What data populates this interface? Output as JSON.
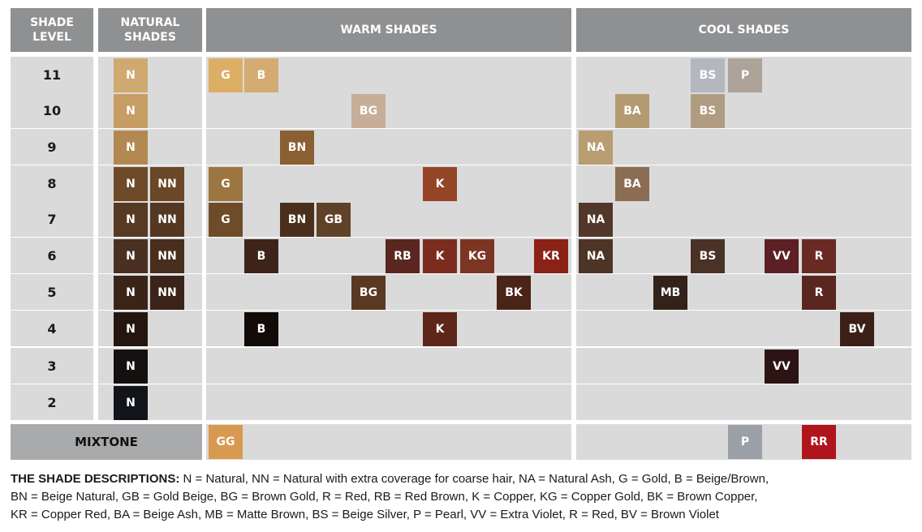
{
  "headers": {
    "shade_level": "SHADE\nLEVEL",
    "natural": "NATURAL\nSHADES",
    "warm": "WARM SHADES",
    "cool": "COOL SHADES"
  },
  "mixtone_label": "MIXTONE",
  "rows": [
    {
      "level": "11",
      "natural": [
        {
          "code": "N",
          "color": "#cfa970"
        }
      ],
      "warm": [
        {
          "code": "G",
          "color": "#dcae66"
        },
        {
          "code": "B",
          "color": "#d4ab72"
        }
      ],
      "cool": [
        {
          "code": "BS",
          "color": "#b4b8be"
        },
        {
          "code": "P",
          "color": "#aea399"
        }
      ]
    },
    {
      "level": "10",
      "natural": [
        {
          "code": "N",
          "color": "#c69d62"
        }
      ],
      "warm": [
        {
          "code": "BG",
          "color": "#c6ae98"
        }
      ],
      "cool": [
        {
          "code": "BA",
          "color": "#b49a72"
        },
        {
          "code": "BS",
          "color": "#b09c80"
        }
      ]
    },
    {
      "level": "9",
      "natural": [
        {
          "code": "N",
          "color": "#b38850"
        }
      ],
      "warm": [
        {
          "code": "BN",
          "color": "#8a5f32"
        }
      ],
      "cool": [
        {
          "code": "NA",
          "color": "#b89d70"
        }
      ]
    },
    {
      "level": "8",
      "natural": [
        {
          "code": "N",
          "color": "#6e4a29"
        },
        {
          "code": "NN",
          "color": "#6a4727"
        }
      ],
      "warm": [
        {
          "code": "G",
          "color": "#9c7540"
        },
        {
          "code": "K",
          "color": "#944526"
        }
      ],
      "cool": [
        {
          "code": "BA",
          "color": "#8a6d52"
        }
      ]
    },
    {
      "level": "7",
      "natural": [
        {
          "code": "N",
          "color": "#563a22"
        },
        {
          "code": "NN",
          "color": "#553822"
        }
      ],
      "warm": [
        {
          "code": "G",
          "color": "#6e4c2a"
        },
        {
          "code": "BN",
          "color": "#4a301c"
        },
        {
          "code": "GB",
          "color": "#604228"
        }
      ],
      "cool": [
        {
          "code": "NA",
          "color": "#52372a"
        }
      ]
    },
    {
      "level": "6",
      "natural": [
        {
          "code": "N",
          "color": "#4a3020"
        },
        {
          "code": "NN",
          "color": "#472e1e"
        }
      ],
      "warm": [
        {
          "code": "B",
          "color": "#3e2418"
        },
        {
          "code": "RB",
          "color": "#5a2620"
        },
        {
          "code": "K",
          "color": "#7c2c1e"
        },
        {
          "code": "KG",
          "color": "#7c3522"
        },
        {
          "code": "KR",
          "color": "#8a2218"
        }
      ],
      "cool": [
        {
          "code": "NA",
          "color": "#4c3426"
        },
        {
          "code": "BS",
          "color": "#4a3226"
        },
        {
          "code": "VV",
          "color": "#5c2024"
        },
        {
          "code": "R",
          "color": "#6a2a24"
        }
      ]
    },
    {
      "level": "5",
      "natural": [
        {
          "code": "N",
          "color": "#3a2418"
        },
        {
          "code": "NN",
          "color": "#3a2318"
        }
      ],
      "warm": [
        {
          "code": "BG",
          "color": "#5a3822"
        },
        {
          "code": "BK",
          "color": "#4a2418"
        }
      ],
      "cool": [
        {
          "code": "MB",
          "color": "#332219"
        },
        {
          "code": "R",
          "color": "#5a2620"
        }
      ]
    },
    {
      "level": "4",
      "natural": [
        {
          "code": "N",
          "color": "#24160f"
        }
      ],
      "warm": [
        {
          "code": "B",
          "color": "#120a07"
        },
        {
          "code": "K",
          "color": "#5e2618"
        }
      ],
      "cool": [
        {
          "code": "BV",
          "color": "#3c2018"
        }
      ]
    },
    {
      "level": "3",
      "natural": [
        {
          "code": "N",
          "color": "#141010"
        }
      ],
      "warm": [],
      "cool": [
        {
          "code": "VV",
          "color": "#2c1412"
        }
      ]
    },
    {
      "level": "2",
      "natural": [
        {
          "code": "N",
          "color": "#12141a"
        }
      ],
      "warm": [],
      "cool": []
    }
  ],
  "mixtone": {
    "warm": [
      {
        "code": "GG",
        "color": "#d89a50"
      }
    ],
    "cool": [
      {
        "code": "P",
        "color": "#9aa0a6"
      },
      {
        "code": "RR",
        "color": "#b0141c"
      }
    ]
  },
  "legend": {
    "heading": "THE SHADE DESCRIPTIONS:",
    "line1": " N = Natural, NN = Natural with extra coverage for coarse hair, NA = Natural Ash, G = Gold, B = Beige/Brown,",
    "line2": "BN = Beige Natural, GB = Gold Beige, BG = Brown Gold, R = Red, RB = Red Brown, K = Copper, KG = Copper Gold, BK = Brown Copper,",
    "line3": "KR = Copper Red, BA = Beige Ash, MB = Matte Brown, BS = Beige Silver, P = Pearl, VV = Extra Violet, R = Red, BV = Brown Violet"
  }
}
